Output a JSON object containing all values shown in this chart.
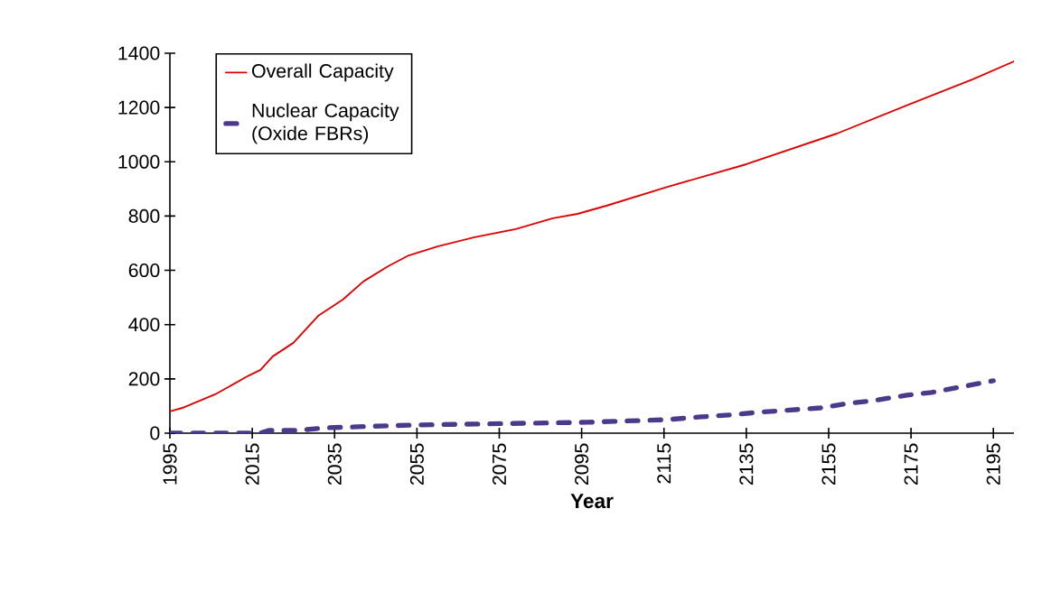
{
  "chart_data": {
    "type": "line",
    "xlabel": "Year",
    "xlim": [
      1995,
      2200
    ],
    "ylim": [
      0,
      1400
    ],
    "xticks": [
      1995,
      2015,
      2035,
      2055,
      2075,
      2095,
      2115,
      2135,
      2155,
      2175,
      2195
    ],
    "yticks": [
      0,
      200,
      400,
      600,
      800,
      1000,
      1200,
      1400
    ],
    "grid": false,
    "legend": "top left",
    "series": [
      {
        "name": "Overall Capacity",
        "color": "#e00000",
        "line_style": "solid",
        "x": [
          1995,
          1998,
          2006,
          2014,
          2017,
          2020,
          2025,
          2031,
          2037,
          2042,
          2048,
          2053,
          2060,
          2069,
          2079,
          2088,
          2094,
          2101,
          2116,
          2135,
          2157,
          2175,
          2190,
          2200
        ],
        "values": [
          80,
          93,
          143,
          211,
          233,
          283,
          333,
          432,
          492,
          559,
          615,
          655,
          688,
          722,
          752,
          792,
          808,
          838,
          908,
          991,
          1104,
          1214,
          1304,
          1370
        ]
      },
      {
        "name": "Nuclear Capacity (Oxide FBRs)",
        "color": "#4b3a8c",
        "line_style": "dashed",
        "x": [
          1995,
          2017,
          2019,
          2026,
          2033,
          2054,
          2096,
          2116,
          2124,
          2131,
          2138,
          2153,
          2160,
          2166,
          2174,
          2180,
          2188,
          2195
        ],
        "values": [
          0,
          0,
          10,
          10,
          20,
          30,
          40,
          50,
          60,
          67,
          77,
          93,
          110,
          120,
          140,
          150,
          173,
          193
        ]
      }
    ]
  }
}
